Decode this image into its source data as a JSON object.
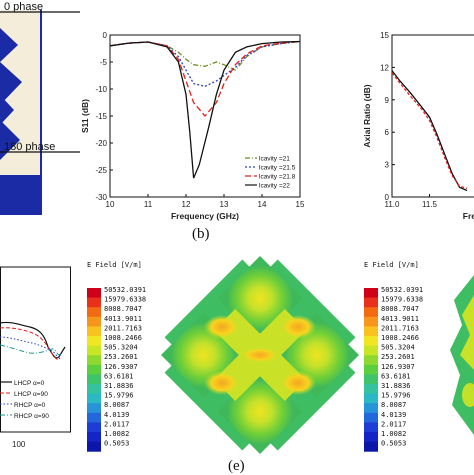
{
  "panel_a": {
    "label_0phase": "0 phase",
    "label_180phase": "180 phase"
  },
  "caption_b": "(b)",
  "caption_e": "(e)",
  "panel_d_legend": [
    "LHCP α=0",
    "LHCP α=90",
    "RHCP α=0",
    "RHCP α=90"
  ],
  "panel_d_xtick": "100",
  "colorbar": {
    "title": "E Field [V/m]",
    "labels": [
      "50532.0391",
      "15979.6338",
      "8008.7047",
      "4013.9011",
      "2011.7163",
      "1008.2466",
      "505.3204",
      "253.2601",
      "126.9307",
      "63.6181",
      "31.8836",
      "15.9796",
      "8.0087",
      "4.0139",
      "2.0117",
      "1.0082",
      "0.5053"
    ],
    "colors": [
      "#d0001a",
      "#e8301a",
      "#f26a12",
      "#f7961c",
      "#f8c21f",
      "#f2e623",
      "#c8e526",
      "#8fd92e",
      "#5ccf3f",
      "#3fc46c",
      "#35c39d",
      "#2bb9c6",
      "#2793d9",
      "#2367dd",
      "#1d3dd6",
      "#1524c6",
      "#0c16a8"
    ]
  },
  "chart_data": [
    {
      "type": "line",
      "xlabel": "Frequency (GHz)",
      "ylabel": "S11 (dB)",
      "xlim": [
        10,
        15
      ],
      "ylim": [
        -30,
        0
      ],
      "xticks": [
        "10",
        "11",
        "12",
        "13",
        "14",
        "15"
      ],
      "yticks": [
        "0",
        "-5",
        "-10",
        "-15",
        "-20",
        "-25",
        "-30"
      ],
      "grid": false,
      "legend_position": "bottom-right",
      "series": [
        {
          "name": "lcavity =21",
          "color": "#6b8e23",
          "dash": "5,2,1,2",
          "x": [
            10,
            10.5,
            11,
            11.5,
            11.8,
            12,
            12.2,
            12.5,
            12.8,
            13,
            13.3,
            13.6,
            14,
            14.5,
            15
          ],
          "y": [
            -2,
            -1.5,
            -1.3,
            -2.0,
            -3.2,
            -4.5,
            -5.5,
            -5.8,
            -5.0,
            -5.5,
            -6.5,
            -4.0,
            -2.2,
            -1.6,
            -1.2
          ]
        },
        {
          "name": "lcavity =21.5",
          "color": "#2a3fc4",
          "dash": "2,2",
          "x": [
            10,
            10.5,
            11,
            11.5,
            11.8,
            12,
            12.2,
            12.5,
            12.8,
            13,
            13.3,
            13.6,
            14,
            14.5,
            15
          ],
          "y": [
            -2,
            -1.5,
            -1.3,
            -2.0,
            -4.0,
            -6.5,
            -9.0,
            -9.5,
            -8.5,
            -7.5,
            -6.0,
            -3.8,
            -2.2,
            -1.6,
            -1.2
          ]
        },
        {
          "name": "lcavity =21.8",
          "color": "#e0201a",
          "dash": "6,3",
          "x": [
            10,
            10.5,
            11,
            11.5,
            11.8,
            12,
            12.2,
            12.5,
            12.8,
            13,
            13.3,
            13.6,
            14,
            14.5,
            15
          ],
          "y": [
            -2,
            -1.5,
            -1.3,
            -2.0,
            -4.5,
            -8.5,
            -12.5,
            -15.0,
            -12.5,
            -9.0,
            -5.5,
            -3.5,
            -2.0,
            -1.5,
            -1.2
          ]
        },
        {
          "name": "lcavity =22",
          "color": "#111111",
          "dash": "",
          "x": [
            10,
            10.5,
            11,
            11.5,
            11.8,
            12,
            12.1,
            12.2,
            12.35,
            12.6,
            12.8,
            13,
            13.3,
            13.6,
            14,
            14.5,
            15
          ],
          "y": [
            -2,
            -1.5,
            -1.3,
            -2.2,
            -5.0,
            -11.0,
            -18.0,
            -26.5,
            -24.0,
            -17.0,
            -11.0,
            -6.5,
            -3.2,
            -2.2,
            -1.6,
            -1.3,
            -1.2
          ]
        }
      ]
    },
    {
      "type": "line",
      "xlabel": "Freq",
      "ylabel": "Axial Ratio (dB)",
      "xlim": [
        11.0,
        12.2
      ],
      "ylim": [
        0,
        15
      ],
      "xticks": [
        "11.0",
        "11.5"
      ],
      "yticks": [
        "0",
        "3",
        "6",
        "9",
        "12",
        "15"
      ],
      "grid": false,
      "series": [
        {
          "name": "",
          "color": "#111111",
          "dash": "",
          "x": [
            11.0,
            11.1,
            11.25,
            11.4,
            11.5,
            11.6,
            11.7,
            11.8,
            11.9,
            12.0
          ],
          "y": [
            11.7,
            10.8,
            9.6,
            8.3,
            7.4,
            5.8,
            4.0,
            2.2,
            0.9,
            0.6
          ]
        },
        {
          "name": "",
          "color": "#e0201a",
          "dash": "3,2",
          "x": [
            11.0,
            11.1,
            11.25,
            11.4,
            11.5,
            11.6,
            11.7,
            11.8,
            11.9,
            12.0
          ],
          "y": [
            11.5,
            10.6,
            9.3,
            8.1,
            7.1,
            5.5,
            3.7,
            2.0,
            1.0,
            0.8
          ]
        }
      ]
    }
  ]
}
